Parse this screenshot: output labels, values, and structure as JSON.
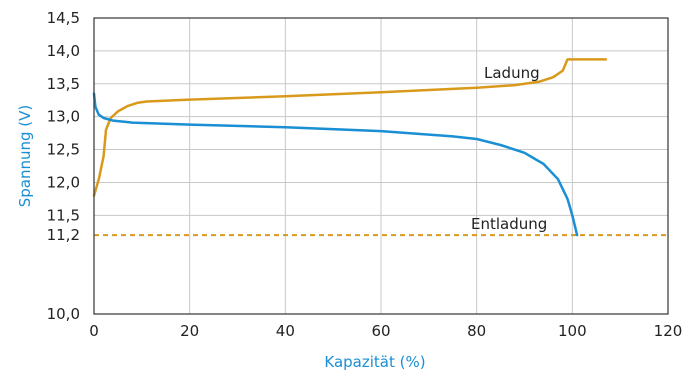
{
  "chart_data": {
    "type": "line",
    "xlabel": "Kapazität (%)",
    "ylabel": "Spannung (V)",
    "xlim": [
      0,
      120
    ],
    "ylim": [
      10.0,
      14.5
    ],
    "x_ticks": [
      "0",
      "20",
      "40",
      "60",
      "80",
      "100",
      "120"
    ],
    "y_ticks": [
      {
        "value": 10.0,
        "label": "10,0"
      },
      {
        "value": 11.2,
        "label": "11,2"
      },
      {
        "value": 11.5,
        "label": "11,5"
      },
      {
        "value": 12.0,
        "label": "12,0"
      },
      {
        "value": 12.5,
        "label": "12,5"
      },
      {
        "value": 13.0,
        "label": "13,0"
      },
      {
        "value": 13.5,
        "label": "13,5"
      },
      {
        "value": 14.0,
        "label": "14,0"
      },
      {
        "value": 14.5,
        "label": "14,5"
      }
    ],
    "highlight_tick_value": 11.2,
    "grid": true,
    "series": [
      {
        "name": "Ladung",
        "color": "#d99a1c",
        "points": [
          [
            0,
            11.8
          ],
          [
            1,
            12.05
          ],
          [
            2,
            12.4
          ],
          [
            2.5,
            12.8
          ],
          [
            3.5,
            12.98
          ],
          [
            5,
            13.08
          ],
          [
            7,
            13.16
          ],
          [
            9,
            13.21
          ],
          [
            11,
            13.23
          ],
          [
            20,
            13.26
          ],
          [
            40,
            13.31
          ],
          [
            60,
            13.37
          ],
          [
            80,
            13.44
          ],
          [
            88,
            13.48
          ],
          [
            93,
            13.53
          ],
          [
            96,
            13.6
          ],
          [
            98,
            13.7
          ],
          [
            99,
            13.87
          ],
          [
            107,
            13.87
          ]
        ]
      },
      {
        "name": "Entladung",
        "color": "#1a8fd4",
        "points": [
          [
            0,
            13.35
          ],
          [
            0.3,
            13.15
          ],
          [
            1,
            13.03
          ],
          [
            2,
            12.98
          ],
          [
            4,
            12.94
          ],
          [
            8,
            12.91
          ],
          [
            20,
            12.88
          ],
          [
            40,
            12.84
          ],
          [
            60,
            12.78
          ],
          [
            75,
            12.7
          ],
          [
            80,
            12.66
          ],
          [
            85,
            12.57
          ],
          [
            90,
            12.45
          ],
          [
            94,
            12.28
          ],
          [
            97,
            12.05
          ],
          [
            99,
            11.75
          ],
          [
            100,
            11.5
          ],
          [
            101,
            11.2
          ]
        ]
      }
    ],
    "reference_line": {
      "y": 11.2,
      "color": "#d99a1c",
      "style": "dashed"
    },
    "annotations": [
      {
        "text": "Ladung",
        "x": 98,
        "y": 13.87
      },
      {
        "text": "Entladung",
        "x": 98,
        "y": 11.9
      }
    ],
    "ylabel_color": "#1a8fd4",
    "xlabel_color": "#1a8fd4"
  }
}
